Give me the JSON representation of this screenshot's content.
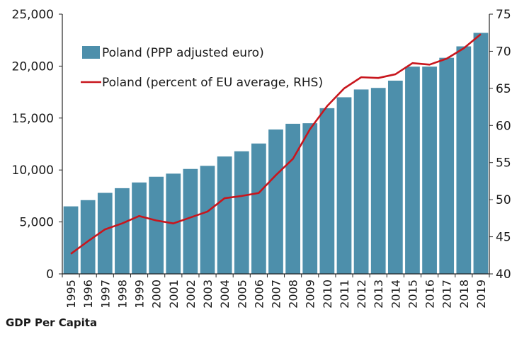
{
  "caption": "GDP Per Capita",
  "colors": {
    "bar": "#4d8fab",
    "line": "#c8161d",
    "grid": "#d9d9d9",
    "axis": "#262626"
  },
  "chart_data": {
    "type": "bar",
    "categories": [
      "1995",
      "1996",
      "1997",
      "1998",
      "1999",
      "2000",
      "2001",
      "2002",
      "2003",
      "2004",
      "2005",
      "2006",
      "2007",
      "2008",
      "2009",
      "2010",
      "2011",
      "2012",
      "2013",
      "2014",
      "2015",
      "2016",
      "2017",
      "2018",
      "2019"
    ],
    "series": [
      {
        "name": "Poland (PPP adjusted euro)",
        "type": "bar",
        "axis": "left",
        "values": [
          6500,
          7100,
          7800,
          8250,
          8800,
          9350,
          9650,
          10100,
          10400,
          11300,
          11800,
          12550,
          13900,
          14450,
          14500,
          15950,
          17000,
          17750,
          17900,
          18600,
          19950,
          19950,
          20800,
          21900,
          23200
        ]
      },
      {
        "name": "Poland (percent of EU average, RHS)",
        "type": "line",
        "axis": "right",
        "values": [
          42.7,
          44.4,
          46.0,
          46.8,
          47.8,
          47.2,
          46.8,
          47.6,
          48.4,
          50.2,
          50.5,
          50.9,
          53.3,
          55.5,
          59.5,
          62.6,
          65.0,
          66.5,
          66.4,
          66.9,
          68.4,
          68.2,
          69.0,
          70.4,
          72.3
        ]
      }
    ],
    "y_left": {
      "ylim": [
        0,
        25000
      ],
      "ticks": [
        0,
        5000,
        10000,
        15000,
        20000,
        25000
      ],
      "tick_labels": [
        "0",
        "5,000",
        "10,000",
        "15,000",
        "20,000",
        "25,000"
      ]
    },
    "y_right": {
      "ylim": [
        40,
        75
      ],
      "ticks": [
        40,
        45,
        50,
        55,
        60,
        65,
        70,
        75
      ],
      "tick_labels": [
        "40",
        "45",
        "50",
        "55",
        "60",
        "65",
        "70",
        "75"
      ]
    },
    "legend": {
      "placement": "top-left",
      "entries": [
        {
          "label": "Poland (PPP adjusted euro)",
          "kind": "bar"
        },
        {
          "label": "Poland (percent of EU average, RHS)",
          "kind": "line"
        }
      ]
    },
    "grid": false
  }
}
